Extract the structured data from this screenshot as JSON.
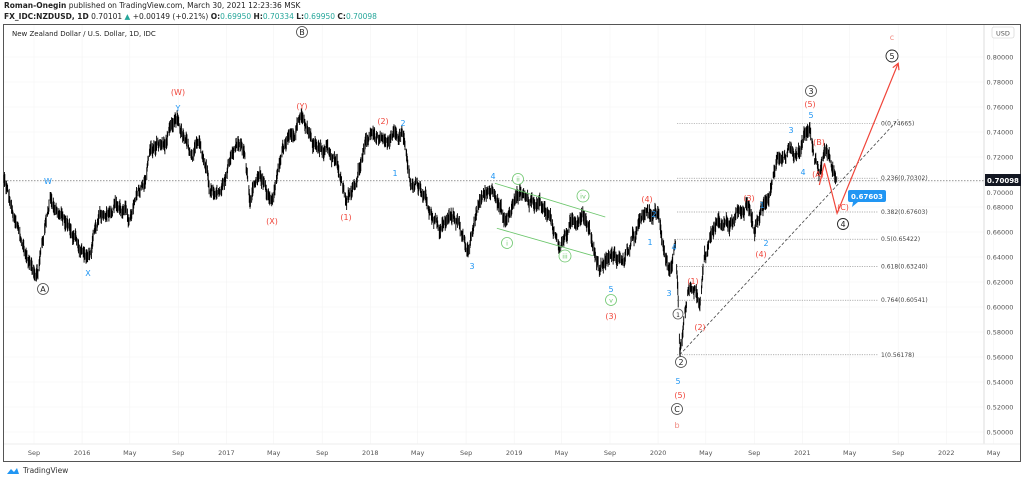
{
  "header": {
    "author": "Roman-Onegin",
    "published_text": "published on TradingView.com, March 30, 2021 12:23:36 MSK",
    "symbol": "FX_IDC:NZDUSD, 1D",
    "last": "0.70101",
    "change": "+0.00149 (+0.21%)",
    "open_label": "O:",
    "open": "0.69950",
    "high_label": "H:",
    "high": "0.70334",
    "low_label": "L:",
    "low": "0.69950",
    "close_label": "C:",
    "close": "0.70098",
    "up_color": "#26a69a"
  },
  "chart_title": "New Zealand Dollar / U.S. Dollar, 1D, IDC",
  "currency": "USD",
  "current_price": "0.70098",
  "branding": "TradingView",
  "colors": {
    "red": "#f0453a",
    "blue": "#2196f3",
    "green": "#6cc66c",
    "pink": "#f08a80",
    "black": "#222222",
    "fib": "#aaaaaa"
  },
  "chart_data": {
    "type": "candlestick",
    "ylim": [
      0.49,
      0.82
    ],
    "yticks": [
      "0.80000",
      "0.78000",
      "0.76000",
      "0.74000",
      "0.72000",
      "0.70000",
      "0.68000",
      "0.66000",
      "0.64000",
      "0.62000",
      "0.60000",
      "0.58000",
      "0.56000",
      "0.54000",
      "0.52000",
      "0.50000"
    ],
    "xticks": [
      {
        "date": "2015-09-01",
        "label": "Sep"
      },
      {
        "date": "2016-01-01",
        "label": "2016"
      },
      {
        "date": "2016-05-01",
        "label": "May"
      },
      {
        "date": "2016-09-01",
        "label": "Sep"
      },
      {
        "date": "2017-01-01",
        "label": "2017"
      },
      {
        "date": "2017-05-01",
        "label": "May"
      },
      {
        "date": "2017-09-01",
        "label": "Sep"
      },
      {
        "date": "2018-01-01",
        "label": "2018"
      },
      {
        "date": "2018-05-01",
        "label": "May"
      },
      {
        "date": "2018-09-01",
        "label": "Sep"
      },
      {
        "date": "2019-01-01",
        "label": "2019"
      },
      {
        "date": "2019-05-01",
        "label": "May"
      },
      {
        "date": "2019-09-01",
        "label": "Sep"
      },
      {
        "date": "2020-01-01",
        "label": "2020"
      },
      {
        "date": "2020-05-01",
        "label": "May"
      },
      {
        "date": "2020-09-01",
        "label": "Sep"
      },
      {
        "date": "2021-01-01",
        "label": "2021"
      },
      {
        "date": "2021-05-01",
        "label": "May"
      },
      {
        "date": "2021-09-01",
        "label": "Sep"
      },
      {
        "date": "2022-01-01",
        "label": "2022"
      },
      {
        "date": "2022-05-01",
        "label": "May"
      }
    ],
    "price_path": [
      [
        "2015-06-17",
        0.7016
      ],
      [
        "2015-06-27",
        0.6896
      ],
      [
        "2015-07-15",
        0.6656
      ],
      [
        "2015-08-22",
        0.6336
      ],
      [
        "2015-09-11",
        0.6296
      ],
      [
        "2015-10-12",
        0.6896
      ],
      [
        "2015-11-06",
        0.6736
      ],
      [
        "2015-12-01",
        0.6616
      ],
      [
        "2016-01-16",
        0.6376
      ],
      [
        "2016-02-15",
        0.6696
      ],
      [
        "2016-03-24",
        0.6856
      ],
      [
        "2016-05-01",
        0.6696
      ],
      [
        "2016-06-08",
        0.7016
      ],
      [
        "2016-06-21",
        0.7256
      ],
      [
        "2016-07-29",
        0.7296
      ],
      [
        "2016-08-31",
        0.748
      ],
      [
        "2016-10-08",
        0.7136
      ],
      [
        "2016-10-26",
        0.7336
      ],
      [
        "2016-11-20",
        0.7016
      ],
      [
        "2016-12-10",
        0.6896
      ],
      [
        "2017-01-23",
        0.7296
      ],
      [
        "2017-02-17",
        0.7256
      ],
      [
        "2017-03-02",
        0.6896
      ],
      [
        "2017-04-01",
        0.7016
      ],
      [
        "2017-04-26",
        0.6856
      ],
      [
        "2017-05-24",
        0.7256
      ],
      [
        "2017-07-06",
        0.7536
      ],
      [
        "2017-08-13",
        0.7256
      ],
      [
        "2017-09-15",
        0.7296
      ],
      [
        "2017-10-11",
        0.7096
      ],
      [
        "2017-10-28",
        0.6856
      ],
      [
        "2017-11-23",
        0.7016
      ],
      [
        "2018-01-05",
        0.7416
      ],
      [
        "2018-02-07",
        0.7256
      ],
      [
        "2018-03-22",
        0.7392
      ],
      [
        "2018-04-11",
        0.7016
      ],
      [
        "2018-05-19",
        0.6896
      ],
      [
        "2018-06-26",
        0.6616
      ],
      [
        "2018-08-03",
        0.6736
      ],
      [
        "2018-09-10",
        0.6456
      ],
      [
        "2018-10-06",
        0.6856
      ],
      [
        "2018-11-13",
        0.6976
      ],
      [
        "2018-12-08",
        0.6656
      ],
      [
        "2019-01-15",
        0.6936
      ],
      [
        "2019-02-22",
        0.6816
      ],
      [
        "2019-03-07",
        0.6912
      ],
      [
        "2019-04-26",
        0.6496
      ],
      [
        "2019-06-24",
        0.6792
      ],
      [
        "2019-08-06",
        0.6312
      ],
      [
        "2019-08-31",
        0.6416
      ],
      [
        "2019-10-08",
        0.6376
      ],
      [
        "2019-11-28",
        0.6736
      ],
      [
        "2019-12-31",
        0.6736
      ],
      [
        "2020-01-30",
        0.6296
      ],
      [
        "2020-02-14",
        0.6456
      ],
      [
        "2020-02-20",
        0.6056
      ],
      [
        "2020-02-25",
        0.5536
      ],
      [
        "2020-03-16",
        0.6056
      ],
      [
        "2020-04-03",
        0.6136
      ],
      [
        "2020-04-15",
        0.5976
      ],
      [
        "2020-04-28",
        0.6376
      ],
      [
        "2020-05-16",
        0.6576
      ],
      [
        "2020-06-05",
        0.6676
      ],
      [
        "2020-07-13",
        0.6656
      ],
      [
        "2020-07-26",
        0.6736
      ],
      [
        "2020-08-15",
        0.6856
      ],
      [
        "2020-09-02",
        0.6576
      ],
      [
        "2020-09-27",
        0.6816
      ],
      [
        "2020-10-15",
        0.6936
      ],
      [
        "2020-10-30",
        0.7176
      ],
      [
        "2020-11-29",
        0.7256
      ],
      [
        "2020-12-25",
        0.7272
      ],
      [
        "2021-01-19",
        0.7467
      ],
      [
        "2021-02-01",
        0.72
      ],
      [
        "2021-02-13",
        0.7056
      ],
      [
        "2021-02-26",
        0.724
      ],
      [
        "2021-03-30",
        0.701
      ]
    ],
    "projection": [
      [
        "2021-02-13",
        0.6976
      ],
      [
        "2021-02-26",
        0.715
      ],
      [
        "2021-03-30",
        0.675
      ],
      [
        "2021-09-01",
        0.795
      ]
    ],
    "trendline": [
      [
        "2020-02-25",
        0.5618
      ],
      [
        "2021-09-01",
        0.75
      ]
    ],
    "channel_upper": [
      [
        "2018-11-13",
        0.699
      ],
      [
        "2019-08-20",
        0.672
      ]
    ],
    "channel_lower": [
      [
        "2018-11-18",
        0.663
      ],
      [
        "2019-07-20",
        0.641
      ]
    ],
    "fib_levels": [
      {
        "ratio": "0",
        "price": 0.74665,
        "label": "0(0.74665)"
      },
      {
        "ratio": "0.236",
        "price": 0.70302,
        "label": "0.236(0.70302)"
      },
      {
        "ratio": "0.382",
        "price": 0.67603,
        "label": "0.382(0.67603)"
      },
      {
        "ratio": "0.5",
        "price": 0.65422,
        "label": "0.5(0.65422)"
      },
      {
        "ratio": "0.618",
        "price": 0.6324,
        "label": "0.618(0.63240)"
      },
      {
        "ratio": "0.764",
        "price": 0.60541,
        "label": "0.764(0.60541)"
      },
      {
        "ratio": "1",
        "price": 0.56178,
        "label": "1(0.56178)"
      }
    ],
    "target_callout": "0.67603"
  },
  "waves": {
    "circled": [
      "A",
      "B",
      "3",
      "5",
      "2",
      "C",
      "4",
      "1"
    ],
    "red": [
      "(W)",
      "(Y)",
      "(X)",
      "(2)",
      "(1)",
      "(3)",
      "(4)",
      "(5)",
      "(1)",
      "(2)",
      "(3)",
      "(4)",
      "(5)",
      "(B)",
      "(A)",
      "(C)"
    ],
    "pink": [
      "b",
      "c"
    ],
    "blue": [
      "W",
      "X",
      "Y",
      "1",
      "2",
      "3",
      "4",
      "1",
      "2",
      "4",
      "3",
      "5",
      "5",
      "1",
      "2",
      "3",
      "5",
      "4"
    ],
    "green": [
      "i",
      "ii",
      "iii",
      "iv",
      "v"
    ]
  }
}
